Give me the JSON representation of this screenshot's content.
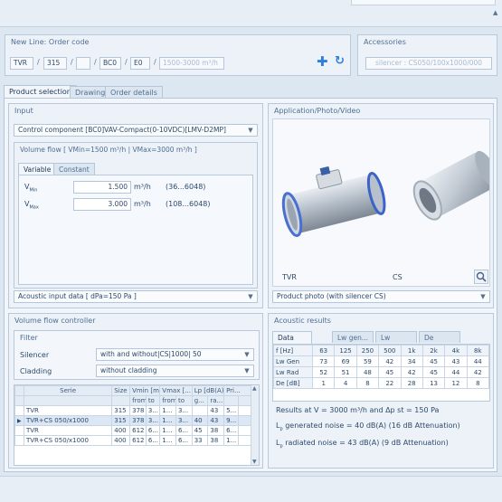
{
  "new_line": {
    "title": "New Line: Order code",
    "segments": [
      "TVR",
      "315",
      "",
      "BC0",
      "E0"
    ],
    "range_placeholder": "1500-3000 m³/h"
  },
  "accessories": {
    "title": "Accessories",
    "value": "silencer : CS050/100x1000/000"
  },
  "tabs": [
    "Product selection",
    "Drawing",
    "Order details"
  ],
  "input": {
    "title": "Input",
    "control_component": "Control component [BC0]VAV-Compact(0-10VDC)[LMV-D2MP]",
    "volume_flow_title": "Volume flow [ VMin=1500 m³/h | VMax=3000 m³/h ]",
    "subtabs": [
      "Variable",
      "Constant"
    ],
    "vmin_label": "V",
    "vmin_sub": "Min",
    "vmin_value": "1.500",
    "vmin_unit": "m³/h",
    "vmin_range": "(36...6048)",
    "vmax_label": "V",
    "vmax_sub": "Max",
    "vmax_value": "3.000",
    "vmax_unit": "m³/h",
    "vmax_range": "(108...6048)",
    "acoustic_input": "Acoustic input data [ dPa=150 Pa ]"
  },
  "application": {
    "title": "Application/Photo/Video",
    "label_left": "TVR",
    "label_right": "CS",
    "photo_select": "Product photo (with silencer CS)"
  },
  "vfc": {
    "title": "Volume flow controller",
    "filter_title": "Filter",
    "silencer_label": "Silencer",
    "silencer_value": "with and without|CS|1000| 50",
    "cladding_label": "Cladding",
    "cladding_value": "without cladding",
    "headers": [
      "Serie",
      "Size",
      "Vmin [m...",
      "Vmax [...",
      "Lp [dB(A)]",
      "Pri..."
    ],
    "subheaders": [
      "",
      "",
      "from",
      "to",
      "from",
      "to",
      "g...",
      "ra..."
    ],
    "rows": [
      [
        "TVR",
        "315",
        "378",
        "3...",
        "1...",
        "3...",
        "43",
        "5..."
      ],
      [
        "TVR+CS 050/x1000",
        "315",
        "378",
        "3...",
        "1...",
        "3...",
        "40",
        "43",
        "9..."
      ],
      [
        "TVR",
        "400",
        "612",
        "6...",
        "1...",
        "6...",
        "45",
        "38",
        "6..."
      ],
      [
        "TVR+CS 050/x1000",
        "400",
        "612",
        "6...",
        "1...",
        "6...",
        "33",
        "38",
        "1..."
      ]
    ]
  },
  "acoustic": {
    "title": "Acoustic results",
    "tabs": [
      "Data",
      "Lw gen...",
      "Lw radi...",
      "De"
    ],
    "header_label": "f [Hz]",
    "freqs": [
      "63",
      "125",
      "250",
      "500",
      "1k",
      "2k",
      "4k",
      "8k"
    ],
    "rows": [
      {
        "label": "Lw Gen",
        "values": [
          "73",
          "69",
          "59",
          "42",
          "34",
          "45",
          "43",
          "44"
        ]
      },
      {
        "label": "Lw Rad",
        "values": [
          "52",
          "51",
          "48",
          "45",
          "42",
          "45",
          "44",
          "42"
        ]
      },
      {
        "label": "De [dB]",
        "values": [
          "1",
          "4",
          "8",
          "22",
          "28",
          "13",
          "12",
          "8"
        ]
      }
    ],
    "result_line": "Results at V = 3000 m³/h and Δp st = 150 Pa",
    "generated": "generated noise = 40 dB(A) (16 dB Attenuation)",
    "radiated": "radiated noise = 43 dB(A) (9 dB Attenuation)",
    "lp": "L",
    "lp_sub": "p"
  }
}
